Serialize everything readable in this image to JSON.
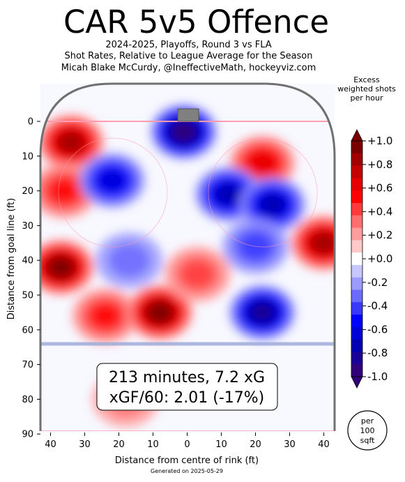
{
  "title": "CAR 5v5 Offence",
  "subtitle_lines": [
    "2024-2025, Playoffs, Round 3 vs FLA",
    "Shot Rates, Relative to League Average for the Season",
    "Micah Blake McCurdy, @IneffectiveMath, hockeyviz.com"
  ],
  "colorbar": {
    "title_lines": [
      "Excess",
      "weighted shots",
      "per hour"
    ],
    "tick_labels": [
      "+1.0",
      "+0.8",
      "+0.6",
      "+0.4",
      "+0.2",
      "+0.0",
      "-0.2",
      "-0.4",
      "-0.6",
      "-0.8",
      "-1.0"
    ],
    "range": [
      -1.0,
      1.0
    ],
    "colors": {
      "positive": [
        "#ffc9c9",
        "#ff9d9d",
        "#ff6f6f",
        "#ff3a3a",
        "#ff0000",
        "#e60000",
        "#c40000",
        "#a00000",
        "#7a0000"
      ],
      "negative": [
        "#c7c7ff",
        "#9a9aff",
        "#6b6bff",
        "#3838ff",
        "#0000ff",
        "#0000d8",
        "#0000b0",
        "#1a0094",
        "#32007a"
      ]
    }
  },
  "stats_box": {
    "line1": "213 minutes, 7.2 xG",
    "line2": "xGF/60: 2.01 (-17%)"
  },
  "area_badge": {
    "lines": [
      "per",
      "100",
      "sqft"
    ]
  },
  "footer": "Generated on 2025-05-29",
  "chart_data": {
    "type": "heatmap",
    "title": "CAR 5v5 Offence",
    "xlabel": "Distance from centre of rink (ft)",
    "ylabel": "Distance from goal line (ft)",
    "x_ticks": [
      "40",
      "30",
      "20",
      "10",
      "0",
      "10",
      "20",
      "30",
      "40"
    ],
    "y_ticks": [
      "0",
      "10",
      "20",
      "30",
      "40",
      "50",
      "60",
      "70",
      "80",
      "90"
    ],
    "xlim": [
      -42.5,
      42.5
    ],
    "ylim": [
      0,
      90
    ],
    "value_range": [
      -1.0,
      1.0
    ],
    "regions": [
      {
        "x": -34,
        "y": 6,
        "value": 0.9
      },
      {
        "x": -36,
        "y": 20,
        "value": 0.55
      },
      {
        "x": -37,
        "y": 42,
        "value": 1.0
      },
      {
        "x": -24,
        "y": 56,
        "value": 0.5
      },
      {
        "x": -8,
        "y": 55,
        "value": 0.95
      },
      {
        "x": 22,
        "y": 12,
        "value": 0.6
      },
      {
        "x": 40,
        "y": 35,
        "value": 0.85
      },
      {
        "x": 3,
        "y": 44,
        "value": 0.35
      },
      {
        "x": -22,
        "y": 17,
        "value": -0.6
      },
      {
        "x": -1,
        "y": 3,
        "value": -0.95
      },
      {
        "x": 12,
        "y": 21,
        "value": -0.8
      },
      {
        "x": 25,
        "y": 24,
        "value": -0.75
      },
      {
        "x": -17,
        "y": 40,
        "value": -0.3
      },
      {
        "x": 22,
        "y": 55,
        "value": -0.85
      },
      {
        "x": 20,
        "y": 36,
        "value": -0.35
      },
      {
        "x": -18,
        "y": 80,
        "value": 0.25
      }
    ]
  }
}
